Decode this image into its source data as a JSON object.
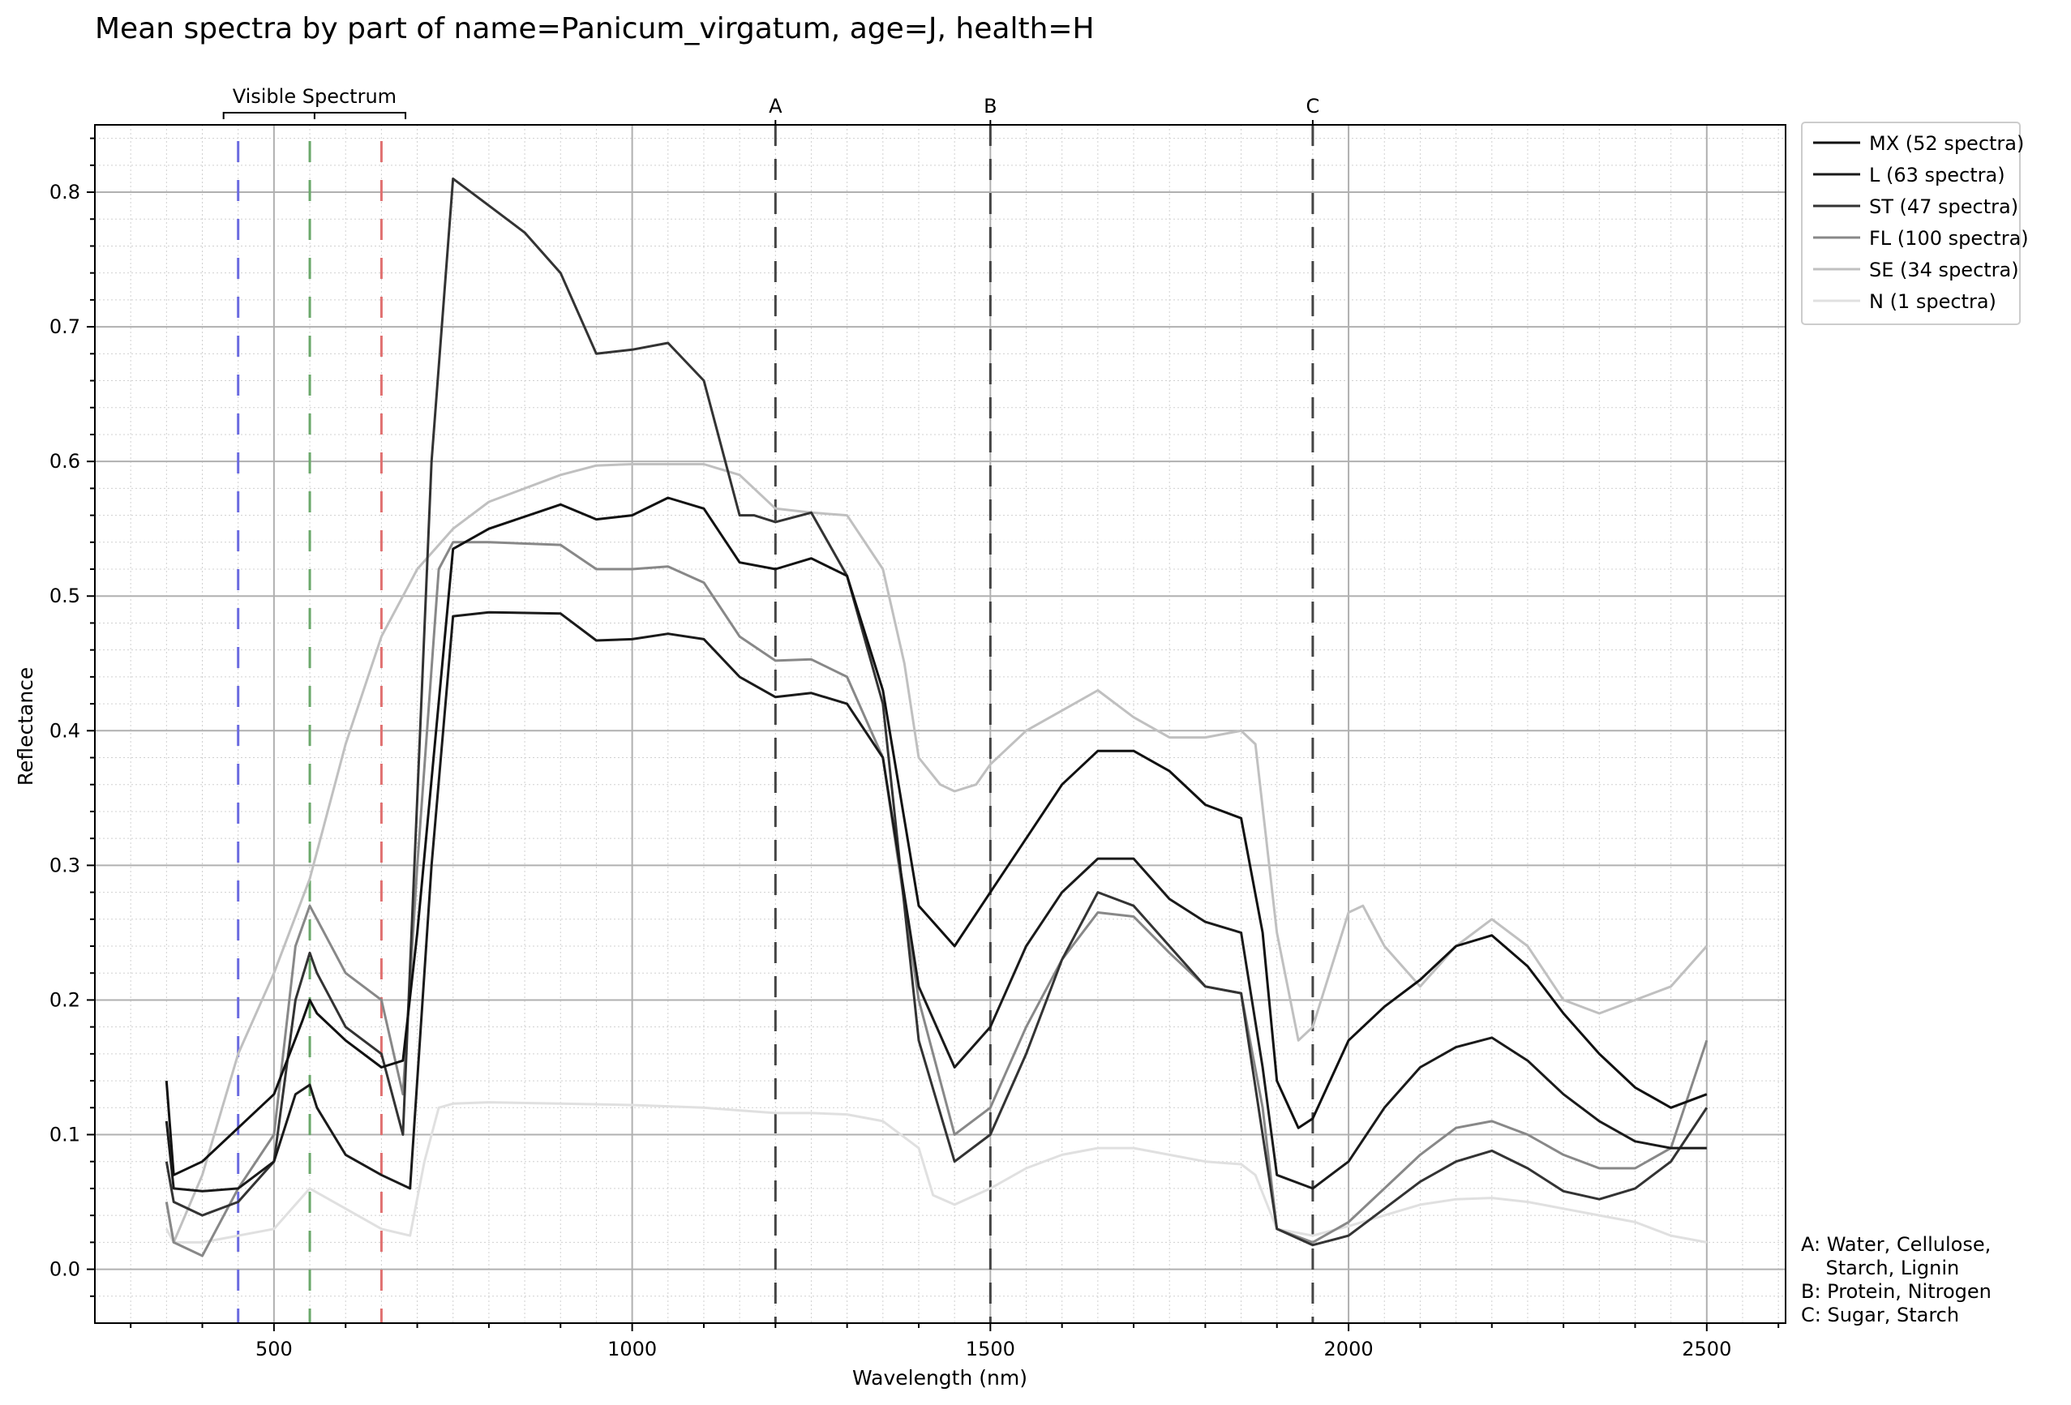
{
  "chart_data": {
    "type": "line",
    "title": "Mean spectra by part of name=Panicum_virgatum, age=J, health=H",
    "xlabel": "Wavelength (nm)",
    "ylabel": "Reflectance",
    "xlim": [
      250,
      2610
    ],
    "ylim": [
      -0.04,
      0.85
    ],
    "xticks": [
      500,
      1000,
      1500,
      2000,
      2500
    ],
    "yticks": [
      0.0,
      0.1,
      0.2,
      0.3,
      0.4,
      0.5,
      0.6,
      0.7,
      0.8
    ],
    "xtick_labels": [
      "500",
      "1000",
      "1500",
      "2000",
      "2500"
    ],
    "ytick_labels": [
      "0.0",
      "0.1",
      "0.2",
      "0.3",
      "0.4",
      "0.5",
      "0.6",
      "0.7",
      "0.8"
    ],
    "grid": "major and minor",
    "legend_position": "outside top-right",
    "visible_spectrum": {
      "label": "Visible Spectrum",
      "range": [
        450,
        670
      ]
    },
    "color_lines": [
      {
        "x": 450,
        "color": "#6b6be0"
      },
      {
        "x": 550,
        "color": "#6aa86a"
      },
      {
        "x": 650,
        "color": "#e07070"
      }
    ],
    "markers": [
      {
        "label": "A",
        "x": 1200
      },
      {
        "label": "B",
        "x": 1500
      },
      {
        "label": "C",
        "x": 1950
      }
    ],
    "notes": [
      "A: Water, Cellulose,",
      "    Starch, Lignin",
      "B: Protein, Nitrogen",
      "C: Sugar, Starch"
    ],
    "series": [
      {
        "name": "MX (52 spectra)",
        "color": "#111111",
        "x": [
          350,
          360,
          400,
          450,
          500,
          540,
          550,
          560,
          600,
          650,
          680,
          700,
          750,
          800,
          900,
          950,
          1000,
          1050,
          1100,
          1150,
          1200,
          1250,
          1300,
          1350,
          1400,
          1450,
          1500,
          1550,
          1600,
          1650,
          1700,
          1750,
          1800,
          1850,
          1880,
          1900,
          1930,
          1950,
          2000,
          2050,
          2100,
          2150,
          2200,
          2250,
          2300,
          2350,
          2400,
          2450,
          2500
        ],
        "y": [
          0.14,
          0.07,
          0.08,
          0.105,
          0.13,
          0.185,
          0.2,
          0.19,
          0.17,
          0.15,
          0.155,
          0.25,
          0.535,
          0.55,
          0.568,
          0.557,
          0.56,
          0.573,
          0.565,
          0.525,
          0.52,
          0.528,
          0.515,
          0.43,
          0.27,
          0.24,
          0.28,
          0.32,
          0.36,
          0.385,
          0.385,
          0.37,
          0.345,
          0.335,
          0.25,
          0.14,
          0.105,
          0.112,
          0.17,
          0.195,
          0.215,
          0.24,
          0.248,
          0.225,
          0.19,
          0.16,
          0.135,
          0.12,
          0.13
        ]
      },
      {
        "name": "L (63 spectra)",
        "color": "#1a1a1a",
        "x": [
          350,
          360,
          400,
          450,
          500,
          530,
          550,
          560,
          600,
          650,
          690,
          720,
          750,
          800,
          900,
          950,
          1000,
          1050,
          1100,
          1150,
          1200,
          1250,
          1300,
          1350,
          1400,
          1450,
          1500,
          1550,
          1600,
          1650,
          1700,
          1750,
          1800,
          1850,
          1880,
          1900,
          1950,
          2000,
          2050,
          2100,
          2150,
          2200,
          2250,
          2300,
          2350,
          2400,
          2450,
          2500
        ],
        "y": [
          0.11,
          0.06,
          0.058,
          0.06,
          0.08,
          0.13,
          0.137,
          0.12,
          0.085,
          0.07,
          0.06,
          0.3,
          0.485,
          0.488,
          0.487,
          0.467,
          0.468,
          0.472,
          0.468,
          0.44,
          0.425,
          0.428,
          0.42,
          0.38,
          0.21,
          0.15,
          0.18,
          0.24,
          0.28,
          0.305,
          0.305,
          0.275,
          0.258,
          0.25,
          0.15,
          0.07,
          0.06,
          0.08,
          0.12,
          0.15,
          0.165,
          0.172,
          0.155,
          0.13,
          0.11,
          0.095,
          0.09,
          0.09
        ]
      },
      {
        "name": "ST (47 spectra)",
        "color": "#333333",
        "x": [
          350,
          360,
          400,
          450,
          500,
          530,
          550,
          560,
          600,
          650,
          680,
          700,
          720,
          750,
          800,
          850,
          900,
          950,
          1000,
          1050,
          1100,
          1150,
          1170,
          1200,
          1250,
          1300,
          1350,
          1400,
          1450,
          1500,
          1550,
          1600,
          1650,
          1700,
          1750,
          1800,
          1850,
          1880,
          1900,
          1950,
          2000,
          2050,
          2100,
          2150,
          2200,
          2250,
          2300,
          2350,
          2400,
          2450,
          2500
        ],
        "y": [
          0.08,
          0.05,
          0.04,
          0.05,
          0.08,
          0.2,
          0.235,
          0.22,
          0.18,
          0.16,
          0.1,
          0.35,
          0.6,
          0.81,
          0.79,
          0.77,
          0.74,
          0.68,
          0.683,
          0.688,
          0.66,
          0.56,
          0.56,
          0.555,
          0.562,
          0.515,
          0.42,
          0.17,
          0.08,
          0.1,
          0.16,
          0.23,
          0.28,
          0.27,
          0.24,
          0.21,
          0.205,
          0.1,
          0.03,
          0.018,
          0.025,
          0.045,
          0.065,
          0.08,
          0.088,
          0.075,
          0.058,
          0.052,
          0.06,
          0.08,
          0.12
        ]
      },
      {
        "name": "FL (100 spectra)",
        "color": "#888888",
        "x": [
          350,
          360,
          400,
          450,
          500,
          530,
          550,
          560,
          600,
          650,
          680,
          700,
          730,
          750,
          800,
          900,
          950,
          1000,
          1050,
          1100,
          1150,
          1200,
          1250,
          1300,
          1350,
          1400,
          1450,
          1500,
          1550,
          1600,
          1650,
          1700,
          1750,
          1800,
          1850,
          1880,
          1900,
          1950,
          2000,
          2050,
          2100,
          2150,
          2200,
          2250,
          2300,
          2350,
          2400,
          2450,
          2500
        ],
        "y": [
          0.05,
          0.02,
          0.01,
          0.06,
          0.1,
          0.24,
          0.27,
          0.26,
          0.22,
          0.2,
          0.13,
          0.3,
          0.52,
          0.54,
          0.54,
          0.538,
          0.52,
          0.52,
          0.522,
          0.51,
          0.47,
          0.452,
          0.453,
          0.44,
          0.38,
          0.2,
          0.1,
          0.12,
          0.18,
          0.23,
          0.265,
          0.262,
          0.235,
          0.21,
          0.205,
          0.12,
          0.03,
          0.02,
          0.035,
          0.06,
          0.085,
          0.105,
          0.11,
          0.1,
          0.085,
          0.075,
          0.075,
          0.09,
          0.17
        ]
      },
      {
        "name": "SE (34 spectra)",
        "color": "#c0c0c0",
        "x": [
          350,
          360,
          400,
          450,
          500,
          550,
          600,
          650,
          700,
          750,
          800,
          900,
          950,
          1000,
          1050,
          1100,
          1150,
          1200,
          1250,
          1300,
          1350,
          1380,
          1400,
          1430,
          1450,
          1480,
          1500,
          1550,
          1600,
          1650,
          1700,
          1750,
          1800,
          1850,
          1870,
          1900,
          1930,
          1950,
          2000,
          2020,
          2050,
          2100,
          2150,
          2200,
          2250,
          2300,
          2350,
          2400,
          2450,
          2500
        ],
        "y": [
          0.05,
          0.02,
          0.07,
          0.16,
          0.22,
          0.29,
          0.39,
          0.47,
          0.52,
          0.55,
          0.57,
          0.59,
          0.597,
          0.598,
          0.598,
          0.598,
          0.59,
          0.565,
          0.562,
          0.56,
          0.52,
          0.45,
          0.38,
          0.36,
          0.355,
          0.36,
          0.375,
          0.4,
          0.415,
          0.43,
          0.41,
          0.395,
          0.395,
          0.4,
          0.39,
          0.25,
          0.17,
          0.18,
          0.265,
          0.27,
          0.24,
          0.21,
          0.24,
          0.26,
          0.24,
          0.2,
          0.19,
          0.2,
          0.21,
          0.24
        ]
      },
      {
        "name": "N (1 spectra)",
        "color": "#e0e0e0",
        "x": [
          350,
          360,
          400,
          450,
          500,
          550,
          600,
          650,
          690,
          710,
          730,
          750,
          800,
          900,
          1000,
          1100,
          1150,
          1200,
          1250,
          1300,
          1350,
          1400,
          1420,
          1450,
          1500,
          1550,
          1600,
          1650,
          1700,
          1750,
          1800,
          1850,
          1870,
          1900,
          1950,
          2000,
          2050,
          2100,
          2150,
          2200,
          2250,
          2300,
          2350,
          2400,
          2450,
          2500
        ],
        "y": [
          0.03,
          0.02,
          0.02,
          0.025,
          0.03,
          0.06,
          0.045,
          0.03,
          0.025,
          0.08,
          0.12,
          0.123,
          0.124,
          0.123,
          0.122,
          0.12,
          0.118,
          0.116,
          0.116,
          0.115,
          0.11,
          0.09,
          0.055,
          0.048,
          0.06,
          0.075,
          0.085,
          0.09,
          0.09,
          0.085,
          0.08,
          0.078,
          0.07,
          0.03,
          0.025,
          0.032,
          0.04,
          0.048,
          0.052,
          0.053,
          0.05,
          0.045,
          0.04,
          0.035,
          0.025,
          0.02
        ]
      }
    ]
  }
}
